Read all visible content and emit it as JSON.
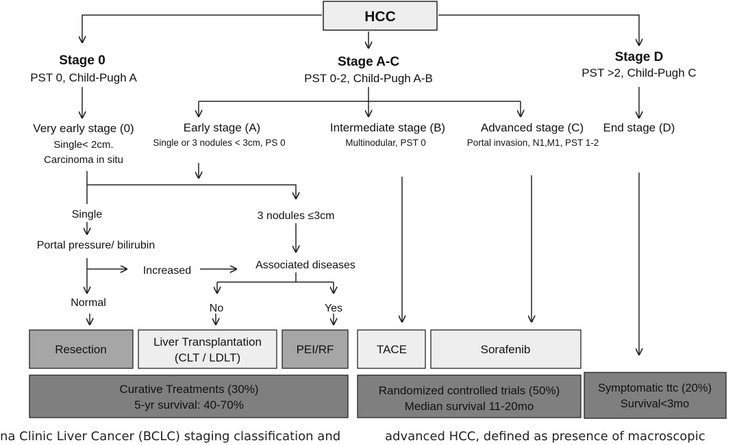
{
  "root": {
    "label": "HCC"
  },
  "stages": {
    "stage0": {
      "title": "Stage 0",
      "subtitle": "PST 0, Child-Pugh A"
    },
    "stageAC": {
      "title": "Stage A-C",
      "subtitle": "PST 0-2, Child-Pugh A-B"
    },
    "stageD": {
      "title": "Stage D",
      "subtitle": "PST >2, Child-Pugh C"
    }
  },
  "substages": {
    "very_early": {
      "title": "Very early stage (0)",
      "line1": "Single< 2cm.",
      "line2": "Carcinoma in situ"
    },
    "early": {
      "title": "Early stage (A)",
      "line1": "Single or 3 nodules < 3cm, PS 0"
    },
    "intermediate": {
      "title": "Intermediate stage (B)",
      "line1": "Multinodular, PST 0"
    },
    "advanced": {
      "title": "Advanced stage (C)",
      "line1": "Portal invasion, N1,M1, PST 1-2"
    },
    "end": {
      "title": "End stage (D)"
    }
  },
  "decisions": {
    "single": "Single",
    "three_nodules": "3 nodules ≤3cm",
    "portal_pressure": "Portal pressure/ bilirubin",
    "increased": "Increased",
    "associated_diseases": "Associated diseases",
    "normal": "Normal",
    "no": "No",
    "yes": "Yes"
  },
  "treatments": {
    "resection": "Resection",
    "liver_transplant_line1": "Liver Transplantation",
    "liver_transplant_line2": "(CLT / LDLT)",
    "pei_rf": "PEI/RF",
    "tace": "TACE",
    "sorafenib": "Sorafenib"
  },
  "outcomes": {
    "curative_line1": "Curative Treatments (30%)",
    "curative_line2": "5-yr survival: 40-70%",
    "rct_line1": "Randomized controlled trials (50%)",
    "rct_line2": "Median survival 11-20mo",
    "symptomatic_line1": "Symptomatic ttc (20%)",
    "symptomatic_line2": "Survival<3mo"
  },
  "caption": {
    "left": "na Clinic Liver Cancer (BCLC) staging classification and",
    "right": "advanced HCC, defined as presence of macroscopic"
  },
  "colors": {
    "light_box": "#eeeeee",
    "mid_box": "#a6a6a6",
    "dark_box": "#7f7f7f",
    "line": "#222222"
  }
}
